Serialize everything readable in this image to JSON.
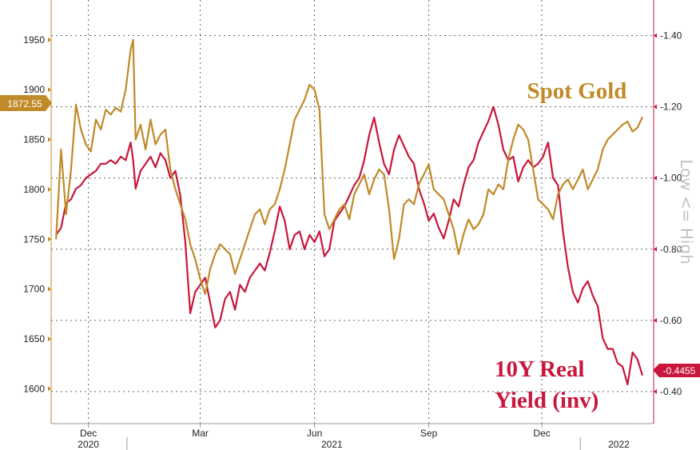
{
  "chart_data": {
    "type": "line",
    "x_axis": {
      "month_labels": [
        "Dec",
        "Mar",
        "Jun",
        "Sep",
        "Dec"
      ],
      "year_labels": [
        "2020",
        "2021",
        "2022"
      ]
    },
    "left_axis": {
      "ticks": [
        1600,
        1650,
        1700,
        1750,
        1800,
        1850,
        1900,
        1950
      ],
      "range": [
        1565,
        1990
      ]
    },
    "right_axis": {
      "ticks": [
        "-0.40",
        "-0.60",
        "-0.80",
        "-1.00",
        "-1.20",
        "-1.40"
      ],
      "tick_values": [
        -0.4,
        -0.6,
        -0.8,
        -1.0,
        -1.2,
        -1.4
      ],
      "range": [
        -0.31,
        -1.5
      ],
      "inverted": true,
      "side_label": "Low <= High"
    },
    "grid": true,
    "series": [
      {
        "name": "Spot Gold",
        "axis": "left",
        "color": "#c08a28",
        "last_value_label": "1872.55",
        "x": [
          "2020-11-05",
          "2020-11-09",
          "2020-11-13",
          "2020-11-17",
          "2020-11-21",
          "2020-11-25",
          "2020-11-29",
          "2020-12-03",
          "2020-12-07",
          "2020-12-11",
          "2020-12-15",
          "2020-12-19",
          "2020-12-23",
          "2020-12-27",
          "2020-12-31",
          "2021-01-04",
          "2021-01-06",
          "2021-01-08",
          "2021-01-12",
          "2021-01-16",
          "2021-01-20",
          "2021-01-24",
          "2021-01-28",
          "2021-02-01",
          "2021-02-05",
          "2021-02-09",
          "2021-02-13",
          "2021-02-17",
          "2021-02-21",
          "2021-02-25",
          "2021-03-01",
          "2021-03-05",
          "2021-03-09",
          "2021-03-13",
          "2021-03-17",
          "2021-03-21",
          "2021-03-25",
          "2021-03-29",
          "2021-04-02",
          "2021-04-06",
          "2021-04-10",
          "2021-04-14",
          "2021-04-18",
          "2021-04-22",
          "2021-04-26",
          "2021-04-30",
          "2021-05-04",
          "2021-05-08",
          "2021-05-12",
          "2021-05-16",
          "2021-05-20",
          "2021-05-24",
          "2021-05-28",
          "2021-06-01",
          "2021-06-05",
          "2021-06-09",
          "2021-06-13",
          "2021-06-17",
          "2021-06-21",
          "2021-06-25",
          "2021-06-29",
          "2021-07-03",
          "2021-07-07",
          "2021-07-11",
          "2021-07-15",
          "2021-07-19",
          "2021-07-23",
          "2021-07-27",
          "2021-07-31",
          "2021-08-04",
          "2021-08-08",
          "2021-08-12",
          "2021-08-16",
          "2021-08-20",
          "2021-08-24",
          "2021-08-28",
          "2021-09-01",
          "2021-09-05",
          "2021-09-09",
          "2021-09-13",
          "2021-09-17",
          "2021-09-21",
          "2021-09-25",
          "2021-09-29",
          "2021-10-03",
          "2021-10-07",
          "2021-10-11",
          "2021-10-15",
          "2021-10-19",
          "2021-10-23",
          "2021-10-27",
          "2021-10-31",
          "2021-11-04",
          "2021-11-08",
          "2021-11-12",
          "2021-11-16",
          "2021-11-20",
          "2021-11-24",
          "2021-11-28",
          "2021-12-02",
          "2021-12-06",
          "2021-12-10",
          "2021-12-14",
          "2021-12-18",
          "2021-12-22",
          "2021-12-26",
          "2021-12-30",
          "2022-01-03",
          "2022-01-07",
          "2022-01-11",
          "2022-01-15",
          "2022-01-19",
          "2022-01-23",
          "2022-01-27",
          "2022-01-31",
          "2022-02-04",
          "2022-02-08",
          "2022-02-12",
          "2022-02-16",
          "2022-02-20"
        ],
        "values": [
          1750,
          1840,
          1775,
          1820,
          1885,
          1860,
          1845,
          1838,
          1870,
          1860,
          1880,
          1875,
          1882,
          1878,
          1900,
          1940,
          1950,
          1850,
          1865,
          1840,
          1870,
          1845,
          1855,
          1860,
          1820,
          1800,
          1785,
          1770,
          1745,
          1730,
          1710,
          1695,
          1720,
          1735,
          1745,
          1740,
          1735,
          1715,
          1730,
          1745,
          1760,
          1775,
          1780,
          1765,
          1780,
          1785,
          1800,
          1820,
          1845,
          1870,
          1880,
          1890,
          1905,
          1900,
          1880,
          1775,
          1760,
          1770,
          1780,
          1785,
          1770,
          1795,
          1805,
          1815,
          1795,
          1810,
          1820,
          1815,
          1780,
          1730,
          1750,
          1785,
          1790,
          1785,
          1805,
          1815,
          1825,
          1800,
          1795,
          1790,
          1775,
          1760,
          1735,
          1755,
          1770,
          1760,
          1765,
          1775,
          1800,
          1795,
          1805,
          1800,
          1830,
          1850,
          1865,
          1860,
          1850,
          1820,
          1790,
          1785,
          1780,
          1770,
          1795,
          1805,
          1810,
          1800,
          1810,
          1820,
          1800,
          1810,
          1820,
          1840,
          1850,
          1855,
          1860,
          1865,
          1868,
          1858,
          1862,
          1872.55
        ]
      },
      {
        "name": "10Y Real Yield (inv)",
        "axis": "right",
        "color": "#c8163c",
        "last_value_label": "-0.4455",
        "x": [
          "2020-11-05",
          "2020-11-09",
          "2020-11-13",
          "2020-11-17",
          "2020-11-21",
          "2020-11-25",
          "2020-11-29",
          "2020-12-03",
          "2020-12-07",
          "2020-12-11",
          "2020-12-15",
          "2020-12-19",
          "2020-12-23",
          "2020-12-27",
          "2020-12-31",
          "2021-01-04",
          "2021-01-06",
          "2021-01-08",
          "2021-01-12",
          "2021-01-16",
          "2021-01-20",
          "2021-01-24",
          "2021-01-28",
          "2021-02-01",
          "2021-02-05",
          "2021-02-09",
          "2021-02-13",
          "2021-02-17",
          "2021-02-21",
          "2021-02-25",
          "2021-03-01",
          "2021-03-05",
          "2021-03-09",
          "2021-03-13",
          "2021-03-17",
          "2021-03-21",
          "2021-03-25",
          "2021-03-29",
          "2021-04-02",
          "2021-04-06",
          "2021-04-10",
          "2021-04-14",
          "2021-04-18",
          "2021-04-22",
          "2021-04-26",
          "2021-04-30",
          "2021-05-04",
          "2021-05-08",
          "2021-05-12",
          "2021-05-16",
          "2021-05-20",
          "2021-05-24",
          "2021-05-28",
          "2021-06-01",
          "2021-06-05",
          "2021-06-09",
          "2021-06-13",
          "2021-06-17",
          "2021-06-21",
          "2021-06-25",
          "2021-06-29",
          "2021-07-03",
          "2021-07-07",
          "2021-07-11",
          "2021-07-15",
          "2021-07-19",
          "2021-07-23",
          "2021-07-27",
          "2021-07-31",
          "2021-08-04",
          "2021-08-08",
          "2021-08-12",
          "2021-08-16",
          "2021-08-20",
          "2021-08-24",
          "2021-08-28",
          "2021-09-01",
          "2021-09-05",
          "2021-09-09",
          "2021-09-13",
          "2021-09-17",
          "2021-09-21",
          "2021-09-25",
          "2021-09-29",
          "2021-10-03",
          "2021-10-07",
          "2021-10-11",
          "2021-10-15",
          "2021-10-19",
          "2021-10-23",
          "2021-10-27",
          "2021-10-31",
          "2021-11-04",
          "2021-11-08",
          "2021-11-12",
          "2021-11-16",
          "2021-11-20",
          "2021-11-24",
          "2021-11-28",
          "2021-12-02",
          "2021-12-06",
          "2021-12-10",
          "2021-12-14",
          "2021-12-18",
          "2021-12-22",
          "2021-12-26",
          "2021-12-30",
          "2022-01-03",
          "2022-01-07",
          "2022-01-11",
          "2022-01-15",
          "2022-01-19",
          "2022-01-23",
          "2022-01-27",
          "2022-01-31",
          "2022-02-04",
          "2022-02-08",
          "2022-02-12",
          "2022-02-16",
          "2022-02-20"
        ],
        "values": [
          -0.84,
          -0.86,
          -0.93,
          -0.94,
          -0.97,
          -0.98,
          -1.0,
          -1.01,
          -1.02,
          -1.04,
          -1.04,
          -1.05,
          -1.04,
          -1.06,
          -1.05,
          -1.1,
          -1.05,
          -0.97,
          -1.02,
          -1.04,
          -1.06,
          -1.03,
          -1.07,
          -1.05,
          -1.0,
          -1.02,
          -0.95,
          -0.82,
          -0.62,
          -0.68,
          -0.7,
          -0.72,
          -0.65,
          -0.58,
          -0.6,
          -0.66,
          -0.68,
          -0.63,
          -0.7,
          -0.68,
          -0.72,
          -0.74,
          -0.76,
          -0.74,
          -0.79,
          -0.85,
          -0.92,
          -0.88,
          -0.8,
          -0.84,
          -0.85,
          -0.8,
          -0.84,
          -0.82,
          -0.85,
          -0.78,
          -0.8,
          -0.88,
          -0.9,
          -0.92,
          -0.95,
          -0.98,
          -1.0,
          -1.05,
          -1.12,
          -1.17,
          -1.1,
          -1.04,
          -1.01,
          -1.08,
          -1.12,
          -1.09,
          -1.06,
          -1.04,
          -0.97,
          -0.93,
          -0.88,
          -0.9,
          -0.86,
          -0.83,
          -0.88,
          -0.94,
          -0.92,
          -0.98,
          -1.03,
          -1.05,
          -1.1,
          -1.13,
          -1.16,
          -1.2,
          -1.15,
          -1.08,
          -1.05,
          -1.06,
          -0.99,
          -1.03,
          -1.05,
          -1.03,
          -1.04,
          -1.06,
          -1.1,
          -1.0,
          -0.98,
          -0.85,
          -0.75,
          -0.68,
          -0.65,
          -0.69,
          -0.71,
          -0.67,
          -0.64,
          -0.55,
          -0.52,
          -0.52,
          -0.48,
          -0.47,
          -0.42,
          -0.51,
          -0.49,
          -0.4455
        ]
      }
    ]
  }
}
